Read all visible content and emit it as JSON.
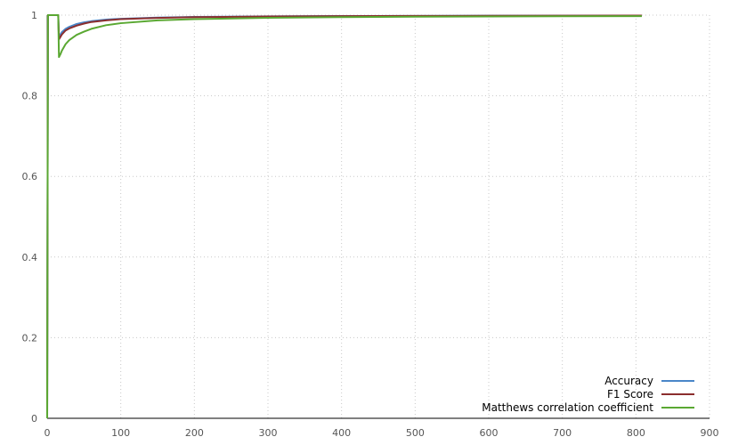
{
  "chart_data": {
    "type": "line",
    "xlim": [
      0,
      900
    ],
    "ylim": [
      0,
      1
    ],
    "x_ticks": [
      "0",
      "100",
      "200",
      "300",
      "400",
      "500",
      "600",
      "700",
      "800",
      "900"
    ],
    "y_ticks": [
      "0",
      "0.2",
      "0.4",
      "0.6",
      "0.8",
      "1"
    ],
    "grid": true,
    "legend_position": "bottom-right",
    "series": [
      {
        "name": "Accuracy",
        "color": "#4a86c8",
        "x": [
          0,
          1,
          2,
          15,
          16,
          18,
          20,
          25,
          30,
          40,
          50,
          60,
          80,
          100,
          150,
          200,
          300,
          400,
          500,
          600,
          700,
          808
        ],
        "y": [
          0,
          1,
          1,
          1,
          0.945,
          0.952,
          0.958,
          0.966,
          0.971,
          0.978,
          0.982,
          0.985,
          0.989,
          0.991,
          0.994,
          0.9955,
          0.997,
          0.9978,
          0.9982,
          0.9985,
          0.9987,
          0.9989
        ]
      },
      {
        "name": "F1 Score",
        "color": "#8b2e2e",
        "x": [
          0,
          1,
          2,
          15,
          16,
          18,
          20,
          25,
          30,
          40,
          50,
          60,
          80,
          100,
          150,
          200,
          300,
          400,
          500,
          600,
          700,
          808
        ],
        "y": [
          0,
          1,
          1,
          1,
          0.94,
          0.946,
          0.952,
          0.962,
          0.967,
          0.974,
          0.979,
          0.983,
          0.987,
          0.99,
          0.993,
          0.995,
          0.9966,
          0.9975,
          0.998,
          0.9983,
          0.9986,
          0.9988
        ]
      },
      {
        "name": "Matthews correlation coefficient",
        "color": "#5aa832",
        "x": [
          0,
          1,
          2,
          15,
          16,
          18,
          20,
          25,
          30,
          40,
          50,
          60,
          80,
          100,
          150,
          200,
          300,
          400,
          500,
          600,
          700,
          808
        ],
        "y": [
          0,
          1,
          1,
          1,
          0.896,
          0.903,
          0.912,
          0.928,
          0.938,
          0.951,
          0.959,
          0.966,
          0.975,
          0.98,
          0.987,
          0.99,
          0.9935,
          0.995,
          0.996,
          0.9967,
          0.9972,
          0.9976
        ]
      }
    ]
  }
}
